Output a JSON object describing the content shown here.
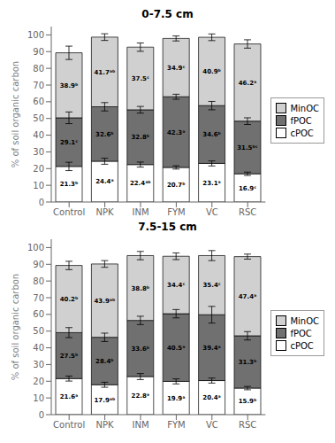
{
  "chart_data": [
    {
      "type": "bar",
      "title": "0-7.5 cm",
      "categories": [
        "Control",
        "NPK",
        "INM",
        "FYM",
        "VC",
        "RSC"
      ],
      "ylabel": "% of soil organic carbon",
      "ylim": [
        0,
        105
      ],
      "yticks": [
        0,
        10,
        20,
        30,
        40,
        50,
        60,
        70,
        80,
        90,
        100
      ],
      "stacked": true,
      "data_labels": true,
      "grid": false,
      "legend": "right",
      "series": [
        {
          "name": "cPOC",
          "color": "#ffffff",
          "values": [
            21.3,
            24.4,
            22.4,
            20.7,
            23.1,
            16.9
          ],
          "value_labels": [
            "21.3ᵇ",
            "24.4ᵃ",
            "22.4ᵃᵇ",
            "20.7ᵇ",
            "23.1ᵃ",
            "16.9ᶜ"
          ],
          "errors": [
            2.5,
            1.8,
            1.5,
            1.0,
            1.5,
            1.0
          ]
        },
        {
          "name": "fPOC",
          "color": "#707070",
          "values": [
            29.1,
            32.6,
            32.8,
            42.3,
            34.6,
            31.5
          ],
          "value_labels": [
            "29.1ᶜ",
            "32.6ᵇ",
            "32.8ᵇ",
            "42.3ᵃ",
            "34.6ᵇ",
            "31.5ᵇᶜ"
          ],
          "errors": [
            3.5,
            2.5,
            2.0,
            1.5,
            2.5,
            2.0
          ]
        },
        {
          "name": "MinOC",
          "color": "#d0d0d0",
          "values": [
            38.9,
            41.7,
            37.5,
            34.9,
            40.9,
            46.2
          ],
          "value_labels": [
            "38.9ᵇ",
            "41.7ᵃᵇ",
            "37.5ᶜ",
            "34.9ᶜ",
            "40.9ᵇ",
            "46.2ᵃ"
          ],
          "errors": [
            4.0,
            2.0,
            2.5,
            1.5,
            2.0,
            2.5
          ]
        }
      ]
    },
    {
      "type": "bar",
      "title": "7.5-15 cm",
      "categories": [
        "Control",
        "NPK",
        "INM",
        "FYM",
        "VC",
        "RSC"
      ],
      "ylabel": "% of soil organic carbon",
      "ylim": [
        0,
        105
      ],
      "yticks": [
        0,
        10,
        20,
        30,
        40,
        50,
        60,
        70,
        80,
        90,
        100
      ],
      "stacked": true,
      "data_labels": true,
      "grid": false,
      "legend": "right",
      "series": [
        {
          "name": "cPOC",
          "color": "#ffffff",
          "values": [
            21.6,
            17.9,
            22.8,
            19.9,
            20.4,
            15.9
          ],
          "value_labels": [
            "21.6ᵃ",
            "17.9ᵃᵇ",
            "22.8ᵃ",
            "19.9ᵃ",
            "20.4ᵃ",
            "15.9ᵇ"
          ],
          "errors": [
            1.5,
            1.5,
            1.8,
            1.5,
            1.5,
            1.0
          ]
        },
        {
          "name": "fPOC",
          "color": "#707070",
          "values": [
            27.5,
            28.4,
            33.6,
            40.5,
            39.4,
            31.3
          ],
          "value_labels": [
            "27.5ᵇ",
            "28.4ᵇ",
            "33.6ᵇ",
            "40.5ᵃ",
            "39.4ᵃ",
            "31.3ᵇ"
          ],
          "errors": [
            3.0,
            2.5,
            2.5,
            2.5,
            5.0,
            2.5
          ]
        },
        {
          "name": "MinOC",
          "color": "#d0d0d0",
          "values": [
            40.2,
            43.9,
            38.8,
            34.4,
            35.4,
            47.4
          ],
          "value_labels": [
            "40.2ᵇ",
            "43.9ᵃᵇ",
            "38.8ᵇ",
            "34.4ᶜ",
            "35.4ᶜ",
            "47.4ᵃ"
          ],
          "errors": [
            2.5,
            2.0,
            2.5,
            2.0,
            3.0,
            1.5
          ]
        }
      ]
    }
  ]
}
